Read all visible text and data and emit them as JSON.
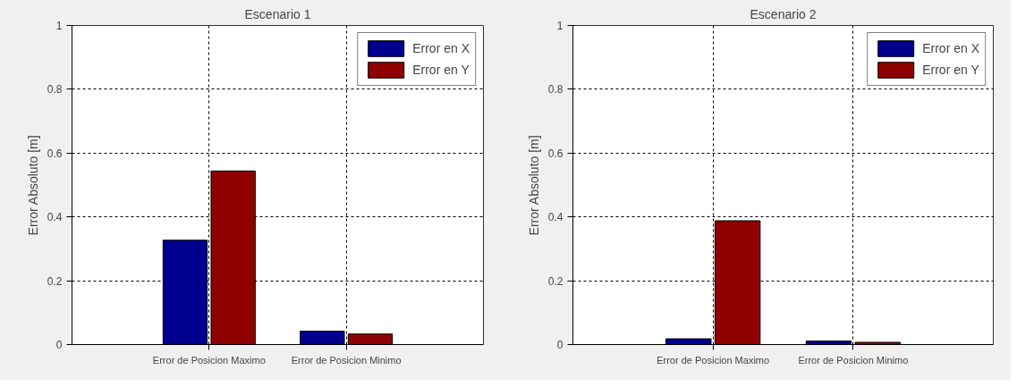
{
  "chart_data": [
    {
      "type": "bar",
      "title": "Escenario 1",
      "ylabel": "Error Absoluto [m]",
      "categories": [
        "Error de Posicion Maximo",
        "Error de Posicion Minimo"
      ],
      "series": [
        {
          "name": "Error en X",
          "color": "#00008f",
          "values": [
            0.327,
            0.042
          ]
        },
        {
          "name": "Error en Y",
          "color": "#8f0000",
          "values": [
            0.544,
            0.033
          ]
        }
      ],
      "ylim": [
        0,
        1
      ],
      "yticks": [
        0,
        0.2,
        0.4,
        0.6,
        0.8,
        1
      ],
      "grid": true,
      "legend": "top right"
    },
    {
      "type": "bar",
      "title": "Escenario 2",
      "ylabel": "Error Absoluto [m]",
      "categories": [
        "Error de Posicion Maximo",
        "Error de Posicion Minimo"
      ],
      "series": [
        {
          "name": "Error en X",
          "color": "#00008f",
          "values": [
            0.018,
            0.011
          ]
        },
        {
          "name": "Error en Y",
          "color": "#8f0000",
          "values": [
            0.388,
            0.007
          ]
        }
      ],
      "ylim": [
        0,
        1
      ],
      "yticks": [
        0,
        0.2,
        0.4,
        0.6,
        0.8,
        1
      ],
      "grid": true,
      "legend": "top right"
    }
  ]
}
